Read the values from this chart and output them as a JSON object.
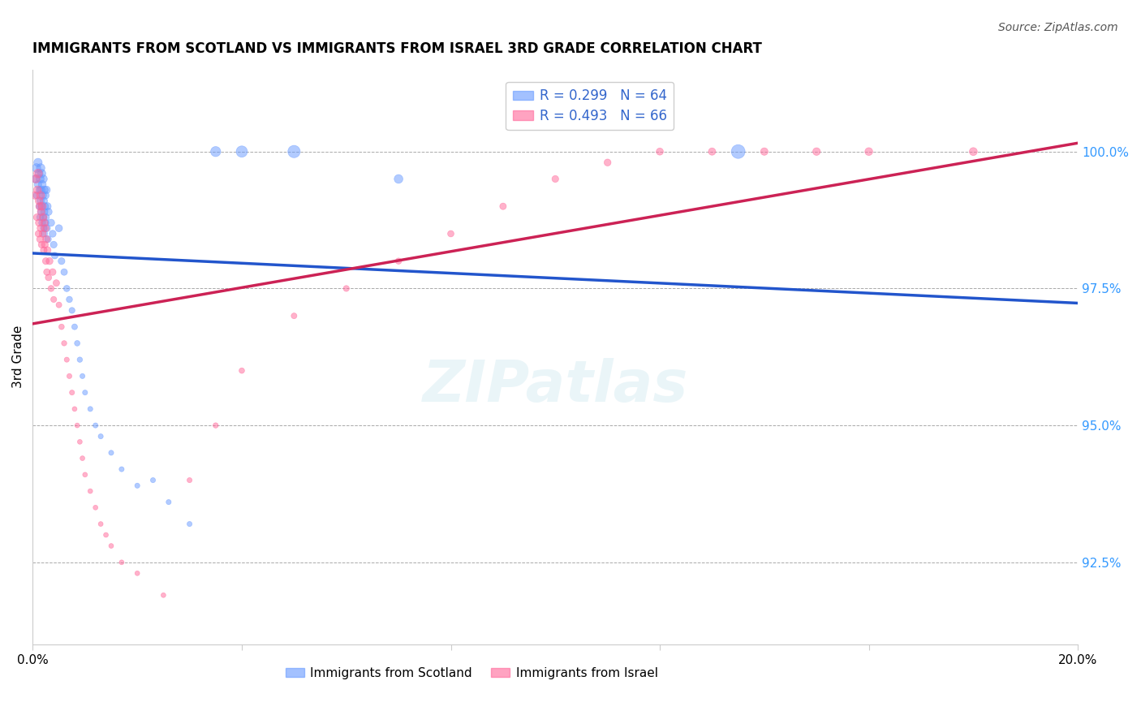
{
  "title": "IMMIGRANTS FROM SCOTLAND VS IMMIGRANTS FROM ISRAEL 3RD GRADE CORRELATION CHART",
  "source": "Source: ZipAtlas.com",
  "ylabel": "3rd Grade",
  "xlim": [
    0.0,
    20.0
  ],
  "ylim": [
    91.0,
    101.5
  ],
  "yticks": [
    92.5,
    95.0,
    97.5,
    100.0
  ],
  "ytick_labels": [
    "92.5%",
    "95.0%",
    "97.5%",
    "100.0%"
  ],
  "scotland_R": 0.299,
  "scotland_N": 64,
  "israel_R": 0.493,
  "israel_N": 66,
  "scotland_color": "#6699ff",
  "israel_color": "#ff6699",
  "scotland_line_color": "#2255cc",
  "israel_line_color": "#cc2255",
  "legend_scotland": "Immigrants from Scotland",
  "legend_israel": "Immigrants from Israel",
  "scotland_x": [
    0.05,
    0.07,
    0.08,
    0.1,
    0.1,
    0.12,
    0.13,
    0.13,
    0.14,
    0.14,
    0.15,
    0.15,
    0.16,
    0.16,
    0.17,
    0.17,
    0.18,
    0.18,
    0.19,
    0.2,
    0.2,
    0.21,
    0.21,
    0.22,
    0.22,
    0.22,
    0.23,
    0.24,
    0.24,
    0.25,
    0.26,
    0.27,
    0.28,
    0.29,
    0.3,
    0.35,
    0.38,
    0.4,
    0.42,
    0.5,
    0.55,
    0.6,
    0.65,
    0.7,
    0.75,
    0.8,
    0.85,
    0.9,
    0.95,
    1.0,
    1.1,
    1.2,
    1.3,
    1.5,
    1.7,
    2.0,
    2.3,
    2.6,
    3.0,
    3.5,
    4.0,
    5.0,
    7.0,
    13.5
  ],
  "scotland_y": [
    99.5,
    99.7,
    99.2,
    99.8,
    99.4,
    99.6,
    99.3,
    99.0,
    99.5,
    98.8,
    99.7,
    99.1,
    99.3,
    98.9,
    99.6,
    99.0,
    99.4,
    98.7,
    99.2,
    99.5,
    98.8,
    99.1,
    98.6,
    99.3,
    98.9,
    98.5,
    99.0,
    98.7,
    99.2,
    98.8,
    99.3,
    98.6,
    99.0,
    98.4,
    98.9,
    98.7,
    98.5,
    98.3,
    98.1,
    98.6,
    98.0,
    97.8,
    97.5,
    97.3,
    97.1,
    96.8,
    96.5,
    96.2,
    95.9,
    95.6,
    95.3,
    95.0,
    94.8,
    94.5,
    94.2,
    93.9,
    94.0,
    93.6,
    93.2,
    100.0,
    100.0,
    100.0,
    99.5,
    100.0
  ],
  "israel_x": [
    0.04,
    0.06,
    0.08,
    0.09,
    0.1,
    0.11,
    0.12,
    0.12,
    0.13,
    0.14,
    0.15,
    0.15,
    0.16,
    0.17,
    0.18,
    0.19,
    0.2,
    0.21,
    0.22,
    0.23,
    0.24,
    0.25,
    0.26,
    0.27,
    0.28,
    0.3,
    0.32,
    0.35,
    0.38,
    0.4,
    0.45,
    0.5,
    0.55,
    0.6,
    0.65,
    0.7,
    0.75,
    0.8,
    0.85,
    0.9,
    0.95,
    1.0,
    1.1,
    1.2,
    1.3,
    1.4,
    1.5,
    1.7,
    2.0,
    2.5,
    3.0,
    3.5,
    4.0,
    5.0,
    6.0,
    7.0,
    8.0,
    9.0,
    10.0,
    11.0,
    12.0,
    13.0,
    14.0,
    15.0,
    16.0,
    18.0
  ],
  "israel_y": [
    99.2,
    99.5,
    98.8,
    99.3,
    99.6,
    98.5,
    99.1,
    98.7,
    99.0,
    98.4,
    99.2,
    98.6,
    98.9,
    98.3,
    99.0,
    98.5,
    98.8,
    98.2,
    98.7,
    98.3,
    98.6,
    98.0,
    98.4,
    97.8,
    98.2,
    97.7,
    98.0,
    97.5,
    97.8,
    97.3,
    97.6,
    97.2,
    96.8,
    96.5,
    96.2,
    95.9,
    95.6,
    95.3,
    95.0,
    94.7,
    94.4,
    94.1,
    93.8,
    93.5,
    93.2,
    93.0,
    92.8,
    92.5,
    92.3,
    91.9,
    94.0,
    95.0,
    96.0,
    97.0,
    97.5,
    98.0,
    98.5,
    99.0,
    99.5,
    99.8,
    100.0,
    100.0,
    100.0,
    100.0,
    100.0,
    100.0
  ],
  "scotland_sizes": [
    50,
    60,
    40,
    55,
    45,
    50,
    42,
    38,
    52,
    36,
    58,
    44,
    48,
    40,
    54,
    42,
    50,
    38,
    46,
    52,
    40,
    44,
    36,
    48,
    42,
    34,
    44,
    40,
    46,
    40,
    48,
    38,
    44,
    36,
    42,
    40,
    38,
    36,
    34,
    40,
    36,
    34,
    32,
    30,
    28,
    26,
    24,
    22,
    20,
    20,
    20,
    20,
    20,
    20,
    20,
    20,
    20,
    20,
    20,
    80,
    100,
    120,
    60,
    150
  ],
  "israel_sizes": [
    45,
    55,
    38,
    50,
    60,
    36,
    48,
    42,
    46,
    38,
    52,
    40,
    46,
    36,
    50,
    40,
    46,
    36,
    44,
    38,
    44,
    36,
    42,
    34,
    40,
    32,
    38,
    30,
    36,
    28,
    34,
    26,
    24,
    22,
    20,
    20,
    20,
    18,
    18,
    18,
    18,
    18,
    18,
    18,
    18,
    18,
    18,
    18,
    18,
    18,
    20,
    22,
    24,
    26,
    28,
    30,
    32,
    34,
    36,
    38,
    40,
    42,
    44,
    46,
    48,
    50
  ]
}
